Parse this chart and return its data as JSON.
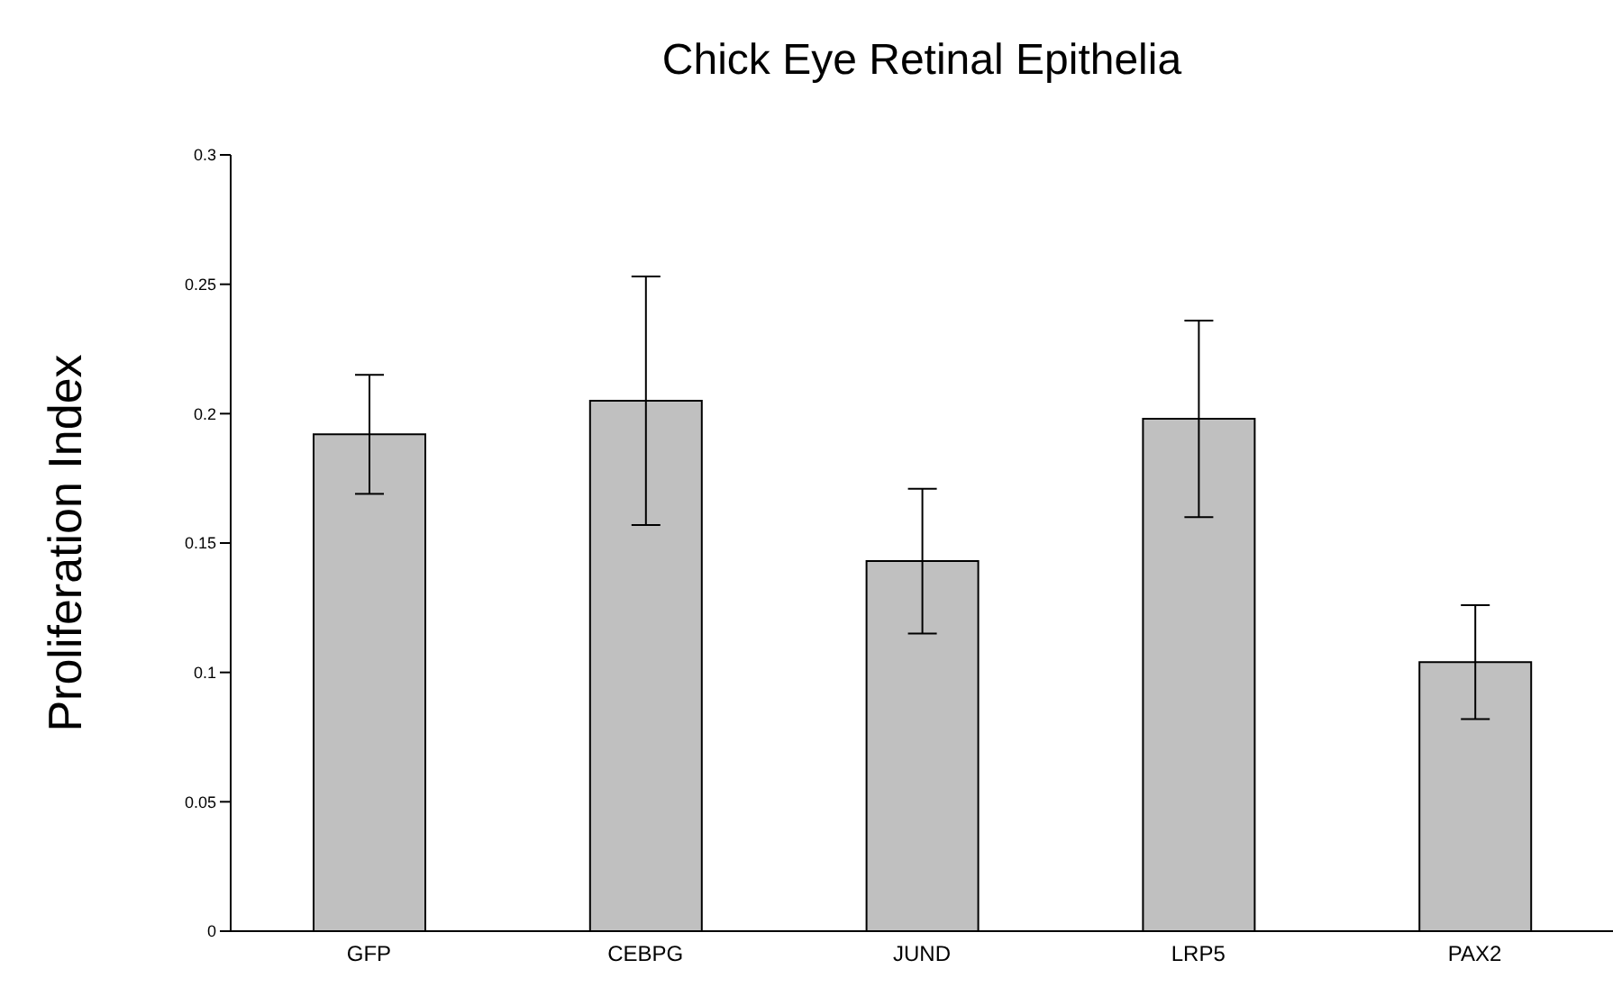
{
  "chart_data": {
    "type": "bar",
    "title": "Chick Eye Retinal Epithelia",
    "ylabel": "Proliferation Index",
    "categories": [
      "GFP",
      "CEBPG",
      "JUND",
      "LRP5",
      "PAX2"
    ],
    "values": [
      0.192,
      0.205,
      0.143,
      0.198,
      0.104
    ],
    "errors": [
      0.023,
      0.048,
      0.028,
      0.038,
      0.022
    ],
    "color": "#c0c0c0",
    "ylim": [
      0,
      0.3
    ],
    "yticks": [
      0,
      0.05,
      0.1,
      0.15,
      0.2,
      0.25,
      0.3
    ],
    "grid": false
  }
}
